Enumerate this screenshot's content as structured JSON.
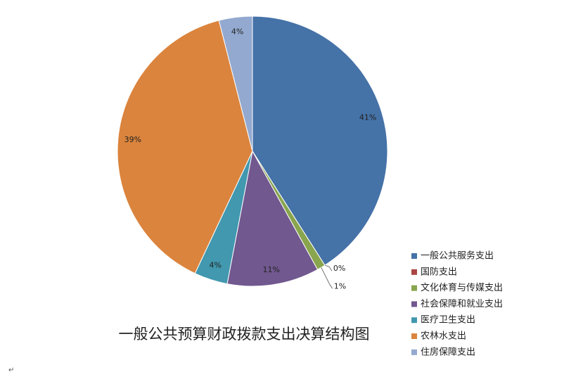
{
  "chart_data": {
    "type": "pie",
    "title": "一般公共预算财政拨款支出决算结构图",
    "categories": [
      "一般公共服务支出",
      "国防支出",
      "文化体育与传媒支出",
      "社会保障和就业支出",
      "医疗卫生支出",
      "农林水支出",
      "住房保障支出"
    ],
    "values": [
      41,
      0,
      1,
      11,
      4,
      39,
      4
    ],
    "value_labels": [
      "41%",
      "0%",
      "1%",
      "11%",
      "4%",
      "39%",
      "4%"
    ],
    "colors": [
      "#4572a7",
      "#aa4643",
      "#89a54e",
      "#71588f",
      "#4198af",
      "#db843d",
      "#93a9cf"
    ],
    "legend": "right-bottom"
  },
  "paragraph_mark": "↵"
}
